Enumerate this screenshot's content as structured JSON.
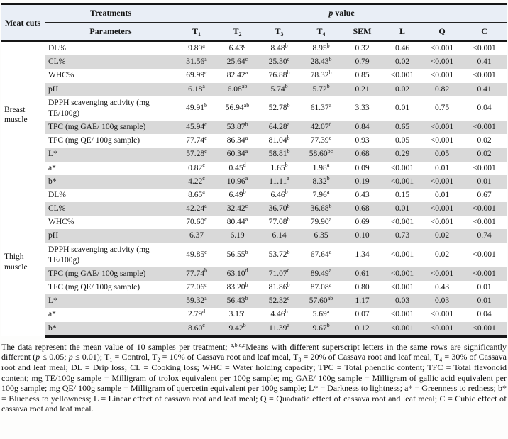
{
  "table": {
    "header": {
      "meat_cuts": "Meat cuts",
      "treatments_label": "Treatments",
      "p_value_label": "//p// value",
      "columns": [
        "Parameters",
        "T_{1}",
        "T_{2}",
        "T_{3}",
        "T_{4}",
        "SEM",
        "L",
        "Q",
        "C"
      ]
    },
    "colors": {
      "header_bg": "#e9eef6",
      "stripe_bg": "#d9d9d9",
      "border": "#161616"
    },
    "groups": [
      {
        "label": "Breast muscle",
        "rows": [
          {
            "parameter": "DL%",
            "values": [
              "9.89^{a}",
              "6.43^{c}",
              "8.48^{b}",
              "8.95^{b}",
              "0.32",
              "0.46",
              "<0.001",
              "<0.001"
            ]
          },
          {
            "parameter": "CL%",
            "values": [
              "31.56^{a}",
              "25.64^{c}",
              "25.30^{c}",
              "28.43^{b}",
              "0.79",
              "0.02",
              "<0.001",
              "0.41"
            ]
          },
          {
            "parameter": "WHC%",
            "values": [
              "69.99^{c}",
              "82.42^{a}",
              "76.88^{b}",
              "78.32^{b}",
              "0.85",
              "<0.001",
              "<0.001",
              "<0.001"
            ]
          },
          {
            "parameter": "pH",
            "values": [
              "6.18^{a}",
              "6.08^{ab}",
              "5.74^{b}",
              "5.72^{b}",
              "0.21",
              "0.02",
              "0.82",
              "0.41"
            ]
          },
          {
            "parameter": "DPPH scavenging activity (mg TE/100g)",
            "values": [
              "49.91^{b}",
              "56.94^{ab}",
              "52.78^{b}",
              "61.37^{a}",
              "3.33",
              "0.01",
              "0.75",
              "0.04"
            ]
          },
          {
            "parameter": "TPC (mg GAE/ 100g sample)",
            "values": [
              "45.94^{c}",
              "53.87^{b}",
              "64.28^{a}",
              "42.07^{d}",
              "0.84",
              "0.65",
              "<0.001",
              "<0.001"
            ]
          },
          {
            "parameter": "TFC (mg QE/ 100g sample)",
            "values": [
              "77.74^{c}",
              "86.34^{a}",
              "81.04^{b}",
              "77.39^{c}",
              "0.93",
              "0.05",
              "<0.001",
              "0.02"
            ]
          },
          {
            "parameter": "L*",
            "values": [
              "57.28^{c}",
              "60.34^{a}",
              "58.81^{b}",
              "58.60^{bc}",
              "0.68",
              "0.29",
              "0.05",
              "0.02"
            ]
          },
          {
            "parameter": "a*",
            "values": [
              "0.82^{c}",
              "0.45^{d}",
              "1.65^{b}",
              "1.98^{a}",
              "0.09",
              "<0.001",
              "0.01",
              "<0.001"
            ]
          },
          {
            "parameter": "b*",
            "values": [
              "4.22^{c}",
              "10.96^{a}",
              "11.11^{a}",
              "8.32^{b}",
              "0.19",
              "<0.001",
              "<0.001",
              "0.01"
            ]
          }
        ]
      },
      {
        "label": "Thigh muscle",
        "rows": [
          {
            "parameter": "DL%",
            "values": [
              "8.65^{a}",
              "6.49^{b}",
              "6.46^{b}",
              "7.96^{a}",
              "0.43",
              "0.15",
              "0.01",
              "0.67"
            ]
          },
          {
            "parameter": "CL%",
            "values": [
              "42.24^{a}",
              "32.42^{c}",
              "36.70^{b}",
              "36.68^{b}",
              "0.68",
              "0.01",
              "<0.001",
              "<0.001"
            ]
          },
          {
            "parameter": "WHC%",
            "values": [
              "70.60^{c}",
              "80.44^{a}",
              "77.08^{b}",
              "79.90^{a}",
              "0.69",
              "<0.001",
              "<0.001",
              "<0.001"
            ]
          },
          {
            "parameter": "pH",
            "values": [
              "6.37",
              "6.19",
              "6.14",
              "6.35",
              "0.10",
              "0.73",
              "0.02",
              "0.74"
            ]
          },
          {
            "parameter": "DPPH scavenging activity (mg TE/100g)",
            "values": [
              "49.85^{c}",
              "56.55^{b}",
              "53.72^{b}",
              "67.64^{a}",
              "1.34",
              "<0.001",
              "0.02",
              "<0.001"
            ]
          },
          {
            "parameter": "TPC (mg GAE/ 100g sample)",
            "values": [
              "77.74^{b}",
              "63.10^{d}",
              "71.07^{c}",
              "89.49^{a}",
              "0.61",
              "<0.001",
              "<0.001",
              "<0.001"
            ]
          },
          {
            "parameter": "TFC (mg QE/ 100g sample)",
            "values": [
              "77.06^{c}",
              "83.20^{b}",
              "81.86^{b}",
              "87.08^{a}",
              "0.80",
              "<0.001",
              "0.43",
              "0.01"
            ]
          },
          {
            "parameter": "L*",
            "values": [
              "59.32^{a}",
              "56.43^{b}",
              "52.32^{c}",
              "57.60^{ab}",
              "1.17",
              "0.03",
              "0.03",
              "0.01"
            ]
          },
          {
            "parameter": "a*",
            "values": [
              "2.79^{d}",
              "3.15^{c}",
              "4.46^{b}",
              "5.69^{a}",
              "0.07",
              "<0.001",
              "<0.001",
              "0.04"
            ]
          },
          {
            "parameter": "b*",
            "values": [
              "8.60^{c}",
              "9.42^{b}",
              "11.39^{a}",
              "9.67^{b}",
              "0.12",
              "<0.001",
              "<0.001",
              "<0.001"
            ]
          }
        ]
      }
    ]
  },
  "footnote": "The data represent the mean value of 10 samples per treatment; ^{a,b,c,d}Means  with different superscript letters in the same rows are significantly different (//p// ≤ 0.05; //p// ≤ 0.01); T_{1} = Control, T_{2} = 10% of Cassava root and leaf meal, T_{3} = 20% of Cassava root and leaf meal, T_{4} = 30% of Cassava root and leaf meal; DL = Drip loss; CL = Cooking loss; WHC = Water holding capacity; TPC = Total phenolic content; TFC = Total flavonoid content; mg TE/100g sample = Milligram of trolox equivalent per 100g sample; mg GAE/ 100g sample = Milligram of gallic acid equivalent per 100g sample; mg QE/ 100g sample = Milligram of quercetin equivalent per 100g sample; L* = Darkness to lightness; a* = Greenness to redness; b* = Blueness to yellowness; L = Linear effect of cassava root and leaf meal; Q = Quadratic effect of cassava root and leaf meal; C = Cubic effect of cassava root and leaf meal."
}
